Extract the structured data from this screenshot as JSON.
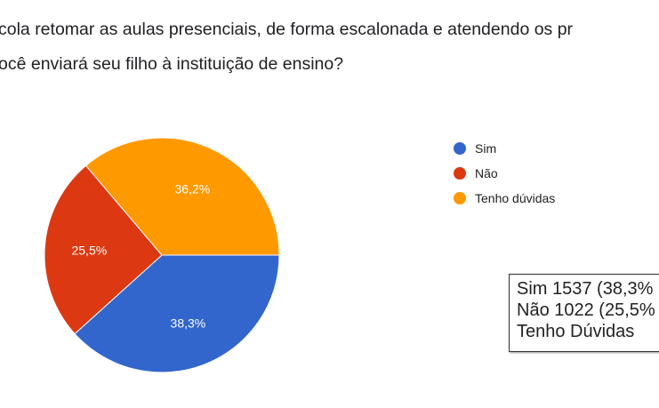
{
  "title_lines": [
    "cola retomar as aulas presenciais, de forma escalonada e atendendo os pr",
    "ocê enviará seu filho à instituição de ensino?"
  ],
  "chart_data": {
    "type": "pie",
    "categories": [
      "Sim",
      "Não",
      "Tenho dúvidas"
    ],
    "values": [
      38.3,
      25.5,
      36.2
    ],
    "labels": [
      "38,3%",
      "25,5%",
      "36,2%"
    ],
    "colors": [
      "#3366cc",
      "#dc3912",
      "#ff9900"
    ],
    "legend_position": "right"
  },
  "summary_box": [
    "Sim 1537 (38,3%",
    "Não 1022 (25,5%",
    "Tenho Dúvidas"
  ]
}
